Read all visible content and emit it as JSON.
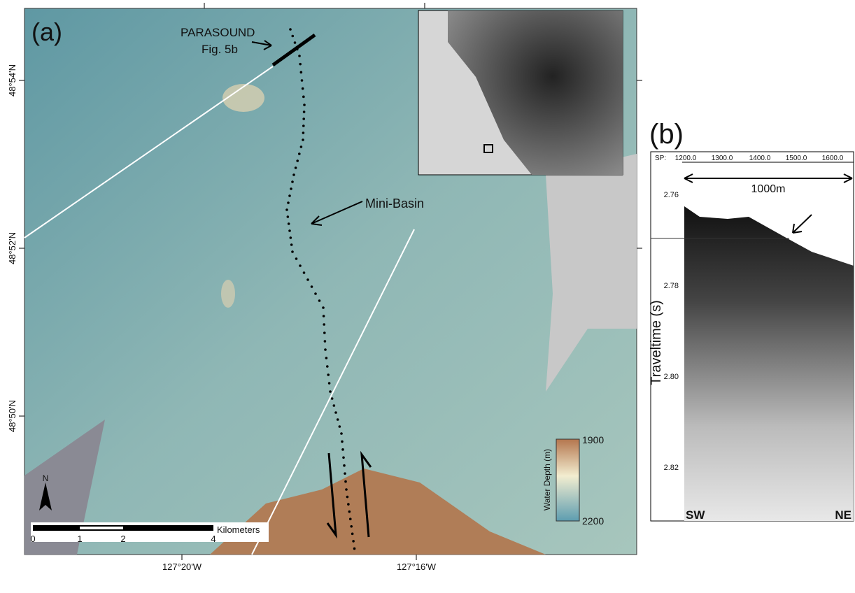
{
  "panel_a": {
    "label": "(a)",
    "annotations": {
      "parasound": "PARASOUND",
      "figure_ref": "Fig. 5b",
      "mini_basin": "Mini-Basin"
    },
    "latitude_labels": [
      "48°54'N",
      "48°52'N",
      "48°50'N"
    ],
    "longitude_labels": [
      "127°20'W",
      "127°16'W"
    ],
    "scale_bar": {
      "unit": "Kilometers",
      "labels": [
        "0",
        "1",
        "2",
        "4"
      ]
    },
    "legend": {
      "title": "Water Depth (m)",
      "top": "1900",
      "bottom": "2200"
    },
    "north": "N"
  },
  "panel_b": {
    "label": "(b)",
    "sp_label": "SP:",
    "sp_ticks": [
      "1200.0",
      "1300.0",
      "1400.0",
      "1500.0",
      "1600.0"
    ],
    "distance": "1000m",
    "y_ticks": [
      "2.76",
      "2.78",
      "2.80",
      "2.82"
    ],
    "y_axis_title": "Traveltime (s)",
    "left_end": "SW",
    "right_end": "NE"
  }
}
